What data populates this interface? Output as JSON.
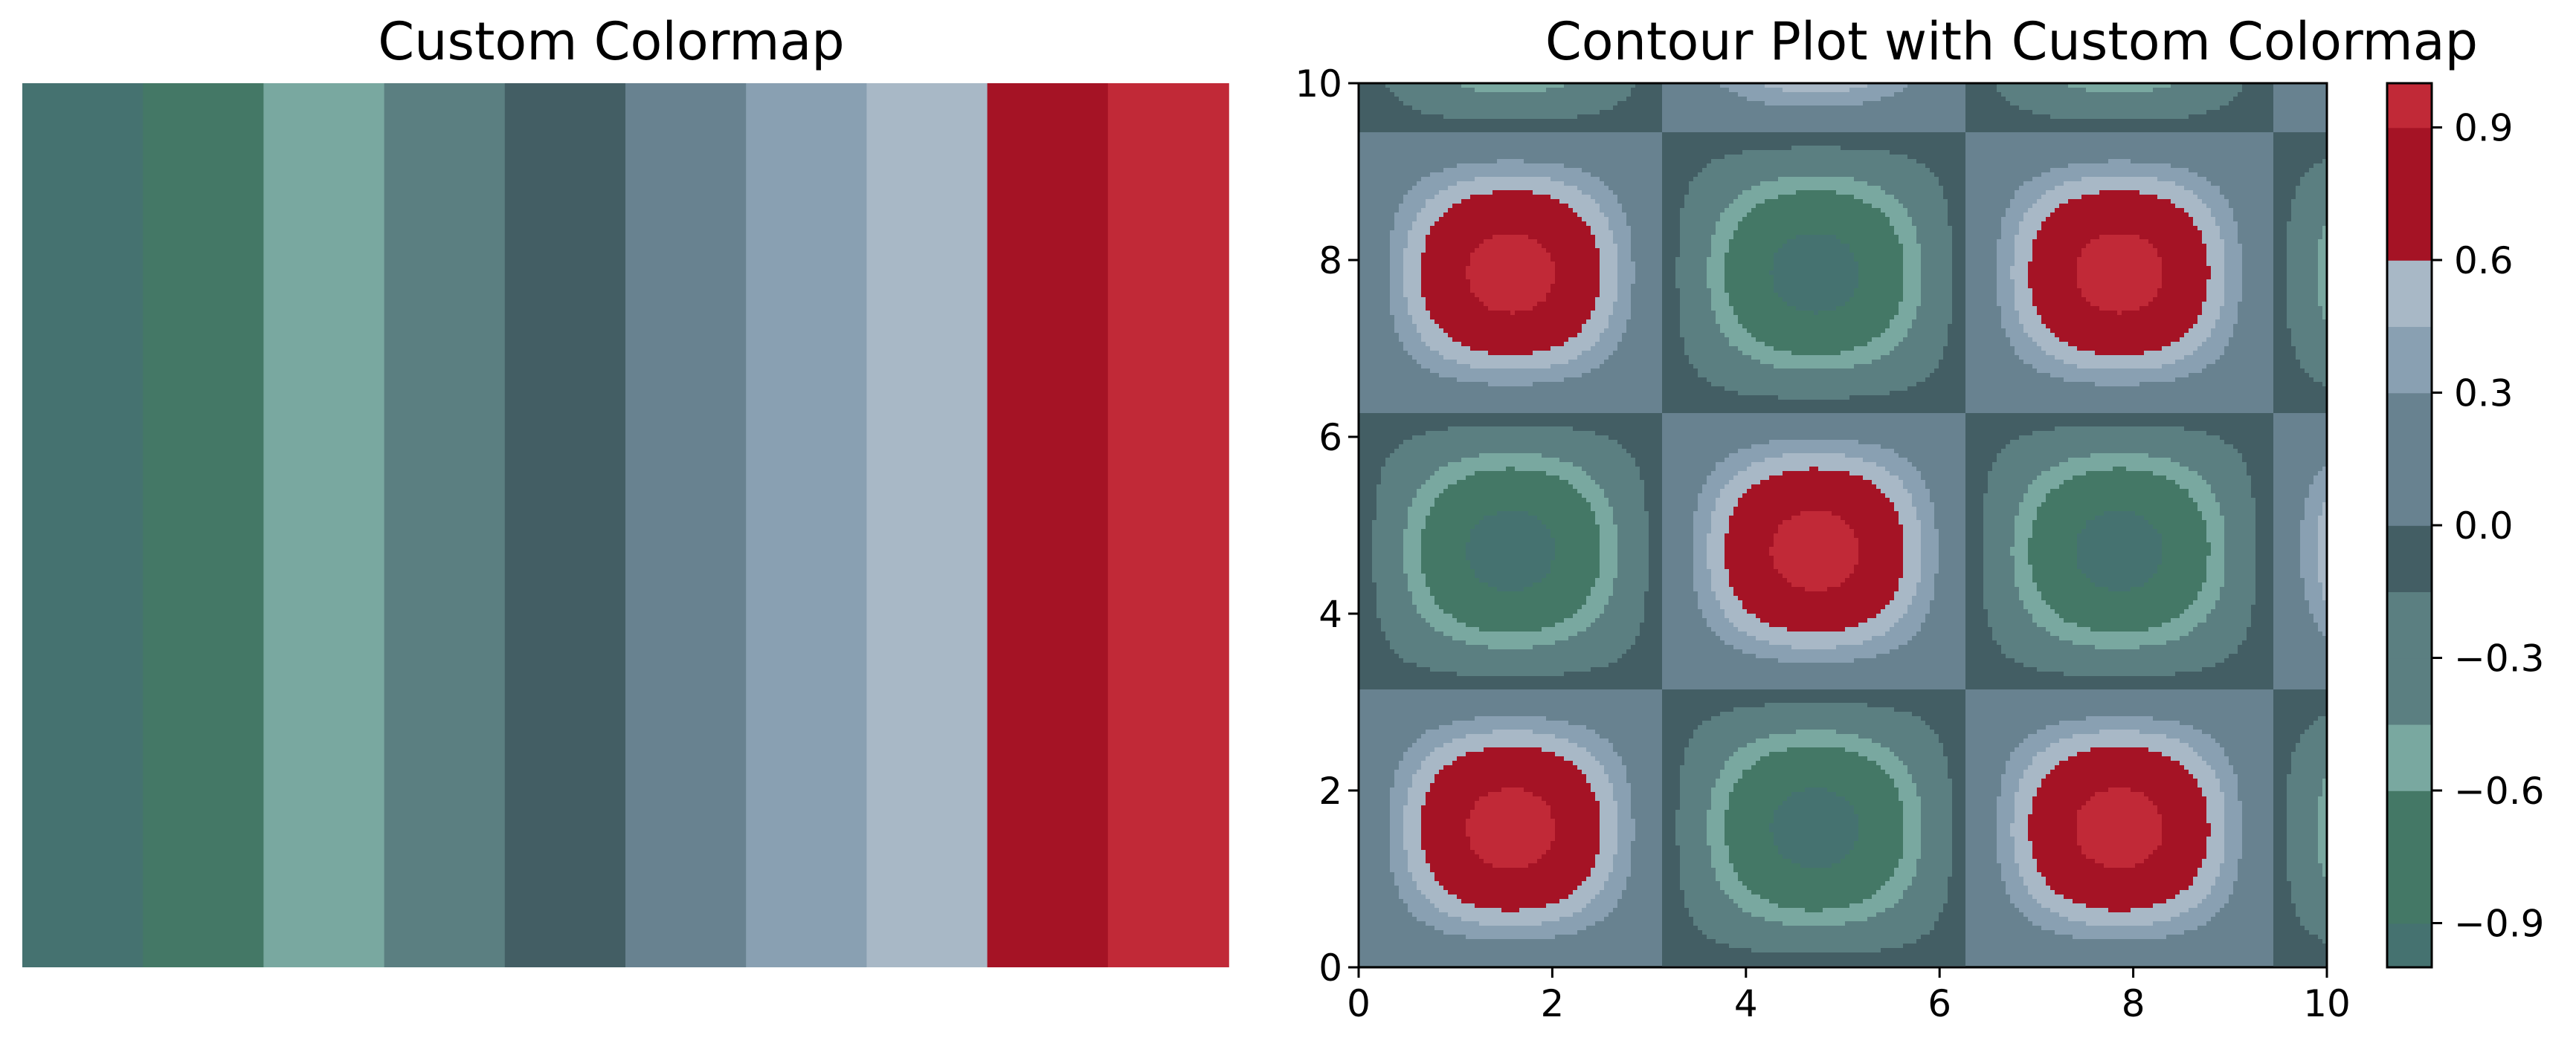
{
  "chart_data": [
    {
      "type": "heatmap",
      "title": "Custom Colormap",
      "orientation": "vertical-stripes",
      "axes_visible": false,
      "colors": [
        "#457270",
        "#447866",
        "#79A8A0",
        "#5B7F81",
        "#435E64",
        "#688290",
        "#89A0B2",
        "#A8B8C6",
        "#A51325",
        "#C12937"
      ]
    },
    {
      "type": "contour",
      "title": "Contour Plot with Custom Colormap",
      "function": "z = sin(x) * sin(y)",
      "xlim": [
        0,
        10
      ],
      "ylim": [
        0,
        10
      ],
      "xticks": [
        "0",
        "2",
        "4",
        "6",
        "8",
        "10"
      ],
      "yticks": [
        "0",
        "2",
        "4",
        "6",
        "8",
        "10"
      ],
      "levels": [
        -1.0,
        -0.9,
        -0.75,
        -0.6,
        -0.45,
        -0.3,
        -0.15,
        0.0,
        0.15,
        0.3,
        0.45,
        0.6,
        0.75,
        0.9,
        1.0
      ],
      "level_colors": [
        "#457270",
        "#447866",
        "#447866",
        "#79A8A0",
        "#5B7F81",
        "#5B7F81",
        "#435E64",
        "#688290",
        "#688290",
        "#89A0B2",
        "#A8B8C6",
        "#A51325",
        "#A51325",
        "#C12937"
      ],
      "colorbar": {
        "range": [
          -1.0,
          1.0
        ],
        "ticks": [
          -0.9,
          -0.6,
          -0.3,
          0.0,
          0.3,
          0.6,
          0.9
        ],
        "tick_labels": [
          "−0.9",
          "−0.6",
          "−0.3",
          "0.0",
          "0.3",
          "0.6",
          "0.9"
        ]
      }
    }
  ]
}
